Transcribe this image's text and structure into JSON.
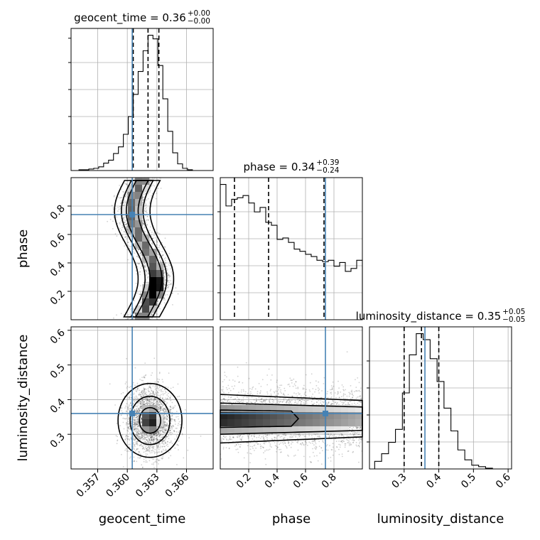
{
  "chart_data": {
    "type": "corner",
    "parameters": [
      "geocent_time",
      "phase",
      "luminosity_distance"
    ],
    "truths": [
      0.3605,
      0.74,
      0.36
    ],
    "truth_color": "#4682b4",
    "ranges": {
      "geocent_time": [
        0.3543,
        0.3687
      ],
      "phase": [
        0.0,
        1.0
      ],
      "luminosity_distance": [
        0.2,
        0.61
      ]
    },
    "ticks": {
      "geocent_time": [
        0.357,
        0.36,
        0.363,
        0.366
      ],
      "phase": [
        0.2,
        0.4,
        0.6,
        0.8
      ],
      "luminosity_distance": [
        0.3,
        0.4,
        0.5,
        0.6
      ]
    },
    "tick_labels": {
      "geocent_time": [
        "0.357",
        "0.360",
        "0.363",
        "0.366"
      ],
      "phase": [
        "0.2",
        "0.4",
        "0.6",
        "0.8"
      ],
      "luminosity_distance": [
        "0.3",
        "0.4",
        "0.5",
        "0.6"
      ]
    },
    "axis_labels": {
      "geocent_time": "geocent_time",
      "phase": "phase",
      "luminosity_distance": "luminosity_distance"
    },
    "titles": [
      {
        "param": "geocent_time",
        "text": "geocent_time = 0.36",
        "plus": "+0.00",
        "minus": "−0.00"
      },
      {
        "param": "phase",
        "text": "phase = 0.34",
        "plus": "+0.39",
        "minus": "−0.24"
      },
      {
        "param": "luminosity_distance",
        "text": "luminosity_distance = 0.35",
        "plus": "+0.05",
        "minus": "−0.05"
      }
    ],
    "quantiles": {
      "geocent_time": [
        0.3606,
        0.3621,
        0.3632
      ],
      "phase": [
        0.1,
        0.34,
        0.73
      ],
      "luminosity_distance": [
        0.3,
        0.35,
        0.4
      ]
    },
    "histograms": {
      "geocent_time": {
        "edges": [
          0.3551,
          0.3556,
          0.3561,
          0.3566,
          0.3571,
          0.3576,
          0.3581,
          0.3586,
          0.3591,
          0.3596,
          0.3601,
          0.3606,
          0.3611,
          0.3616,
          0.3621,
          0.3626,
          0.3631,
          0.3636,
          0.3641,
          0.3646,
          0.3651,
          0.3656,
          0.3661,
          0.3666,
          0.3671
        ],
        "counts": [
          1,
          1,
          2,
          3,
          5,
          10,
          14,
          23,
          32,
          49,
          73,
          103,
          134,
          162,
          183,
          178,
          142,
          97,
          53,
          24,
          9,
          3,
          1,
          0
        ]
      },
      "phase": {
        "edges": [
          0.0,
          0.04,
          0.08,
          0.12,
          0.16,
          0.2,
          0.24,
          0.28,
          0.32,
          0.36,
          0.4,
          0.44,
          0.48,
          0.52,
          0.56,
          0.6,
          0.64,
          0.68,
          0.72,
          0.76,
          0.8,
          0.84,
          0.88,
          0.92,
          0.96,
          1.0
        ],
        "counts": [
          182,
          153,
          162,
          164,
          167,
          157,
          145,
          151,
          131,
          127,
          108,
          110,
          104,
          95,
          92,
          88,
          85,
          80,
          78,
          80,
          72,
          77,
          65,
          69,
          80
        ]
      },
      "luminosity_distance": {
        "edges": [
          0.215,
          0.235,
          0.255,
          0.275,
          0.295,
          0.315,
          0.335,
          0.355,
          0.375,
          0.395,
          0.415,
          0.435,
          0.455,
          0.475,
          0.495,
          0.515,
          0.535,
          0.555,
          0.575
        ],
        "counts": [
          10,
          20,
          35,
          52,
          100,
          150,
          178,
          170,
          145,
          115,
          80,
          50,
          25,
          12,
          5,
          3,
          1,
          0
        ]
      }
    },
    "contour_levels": [
      "39.3%",
      "86.5%",
      "98.9%"
    ]
  }
}
